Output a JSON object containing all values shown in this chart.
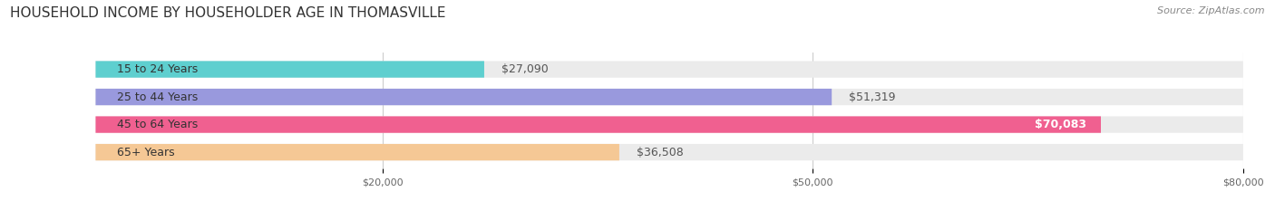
{
  "title": "HOUSEHOLD INCOME BY HOUSEHOLDER AGE IN THOMASVILLE",
  "source": "Source: ZipAtlas.com",
  "categories": [
    "15 to 24 Years",
    "25 to 44 Years",
    "45 to 64 Years",
    "65+ Years"
  ],
  "values": [
    27090,
    51319,
    70083,
    36508
  ],
  "bar_colors": [
    "#5ecfcf",
    "#9999dd",
    "#f06090",
    "#f5c895"
  ],
  "bar_bg_color": "#ebebeb",
  "value_labels": [
    "$27,090",
    "$51,319",
    "$70,083",
    "$36,508"
  ],
  "value_label_white": [
    false,
    false,
    true,
    false
  ],
  "xlim_min": 0,
  "xlim_max": 80000,
  "xticks": [
    20000,
    50000,
    80000
  ],
  "xtick_labels": [
    "$20,000",
    "$50,000",
    "$80,000"
  ],
  "title_fontsize": 11,
  "source_fontsize": 8,
  "label_fontsize": 9,
  "value_fontsize": 9,
  "background_color": "#ffffff"
}
